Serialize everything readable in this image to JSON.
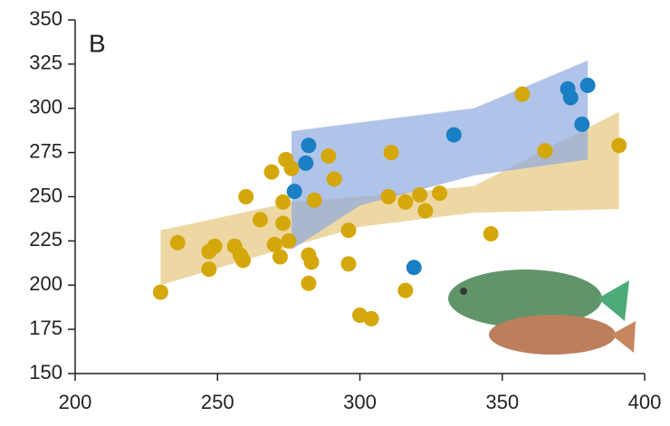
{
  "chart_data": {
    "type": "scatter",
    "annotation": "B",
    "xlim": [
      200,
      400
    ],
    "ylim": [
      150,
      350
    ],
    "xticks": [
      200,
      250,
      300,
      350,
      400
    ],
    "yticks": [
      150,
      175,
      200,
      225,
      250,
      275,
      300,
      325,
      350
    ],
    "bands": [
      {
        "color": "#e6c77d",
        "x": [
          230,
          276,
          300,
          340,
          391
        ],
        "upper": [
          231,
          247,
          250,
          256,
          298
        ],
        "lower": [
          200,
          222,
          233,
          241,
          243
        ]
      },
      {
        "color": "#8fa9de",
        "x": [
          276,
          300,
          340,
          380
        ],
        "upper": [
          287,
          292,
          300,
          327
        ],
        "lower": [
          220,
          245,
          262,
          271
        ]
      }
    ],
    "series": [
      {
        "color": "#d4a70b",
        "x": [
          230,
          236,
          247,
          247,
          249,
          256,
          258,
          259,
          260,
          265,
          269,
          270,
          272,
          273,
          273,
          274,
          275,
          276,
          282,
          282,
          283,
          284,
          289,
          291,
          296,
          296,
          300,
          304,
          310,
          311,
          316,
          316,
          321,
          323,
          328,
          346,
          357,
          365,
          391
        ],
        "values": [
          196,
          224,
          209,
          219,
          222,
          222,
          217,
          214,
          250,
          237,
          264,
          223,
          216,
          235,
          247,
          271,
          225,
          266,
          217,
          201,
          213,
          248,
          273,
          260,
          231,
          212,
          183,
          181,
          250,
          275,
          197,
          247,
          251,
          242,
          252,
          229,
          308,
          276,
          279
        ]
      },
      {
        "color": "#1a7fc4",
        "x": [
          277,
          281,
          282,
          319,
          333,
          373,
          374,
          378,
          380
        ],
        "values": [
          253,
          269,
          279,
          210,
          285,
          311,
          306,
          291,
          313
        ]
      }
    ]
  }
}
